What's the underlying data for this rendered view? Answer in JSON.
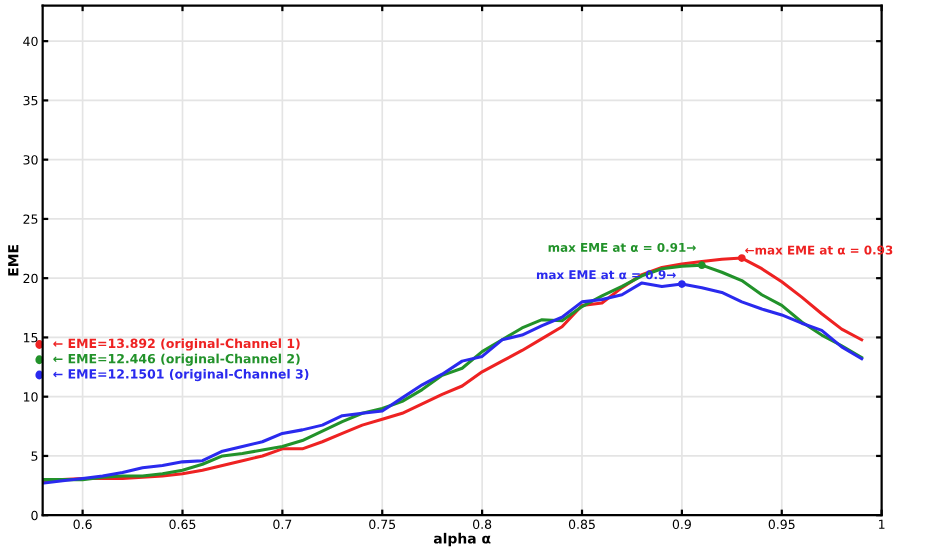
{
  "chart_data": {
    "type": "line",
    "xlabel": "alpha α",
    "ylabel": "EME",
    "x": [
      0.58,
      0.59,
      0.6,
      0.61,
      0.62,
      0.63,
      0.64,
      0.65,
      0.66,
      0.67,
      0.68,
      0.69,
      0.7,
      0.71,
      0.72,
      0.73,
      0.74,
      0.75,
      0.76,
      0.77,
      0.78,
      0.79,
      0.8,
      0.81,
      0.82,
      0.83,
      0.84,
      0.85,
      0.86,
      0.87,
      0.88,
      0.89,
      0.9,
      0.91,
      0.92,
      0.93,
      0.94,
      0.95,
      0.96,
      0.97,
      0.98,
      0.99
    ],
    "series": [
      {
        "color": "#ee2222",
        "values": [
          2.9,
          3.0,
          3.1,
          3.1,
          3.1,
          3.2,
          3.3,
          3.5,
          3.8,
          4.2,
          4.6,
          5.0,
          5.6,
          5.6,
          6.2,
          6.9,
          7.6,
          8.1,
          8.6,
          9.4,
          10.2,
          10.9,
          12.1,
          13.0,
          13.9,
          14.9,
          15.9,
          17.7,
          17.9,
          19.2,
          20.3,
          20.9,
          21.2,
          21.4,
          21.6,
          21.7,
          20.8,
          19.7,
          18.4,
          17.0,
          15.7,
          14.8
        ]
      },
      {
        "color": "#22922a",
        "values": [
          3.0,
          3.0,
          3.0,
          3.2,
          3.3,
          3.3,
          3.5,
          3.8,
          4.3,
          5.0,
          5.2,
          5.5,
          5.8,
          6.3,
          7.1,
          7.9,
          8.6,
          9.0,
          9.6,
          10.6,
          11.8,
          12.4,
          13.8,
          14.8,
          15.8,
          16.5,
          16.4,
          17.6,
          18.5,
          19.3,
          20.2,
          20.8,
          21.0,
          21.1,
          20.5,
          19.8,
          18.6,
          17.7,
          16.3,
          15.2,
          14.3,
          13.3
        ]
      },
      {
        "color": "#2a2aee",
        "values": [
          2.7,
          2.9,
          3.1,
          3.3,
          3.6,
          4.0,
          4.2,
          4.5,
          4.6,
          5.4,
          5.8,
          6.2,
          6.9,
          7.2,
          7.6,
          8.4,
          8.6,
          8.8,
          9.9,
          11.0,
          11.9,
          13.0,
          13.4,
          14.8,
          15.2,
          16.0,
          16.7,
          18.0,
          18.2,
          18.6,
          19.6,
          19.3,
          19.5,
          19.2,
          18.8,
          18.0,
          17.4,
          16.9,
          16.2,
          15.6,
          14.2,
          13.2
        ]
      }
    ],
    "annotations": [
      "← EME=13.892 (original-Channel 1)",
      "← EME=12.446 (original-Channel 2)",
      "← EME=12.1501 (original-Channel 3)",
      {
        "text": "←max EME at α = 0.93",
        "x": 0.93,
        "y": 21.7
      },
      {
        "text": "max EME at α = 0.91→",
        "x": 0.91,
        "y": 21.1
      },
      {
        "text": "max EME at α = 0.9→",
        "x": 0.9,
        "y": 19.5
      }
    ],
    "xlim": [
      0.58,
      1
    ],
    "ylim": [
      0,
      43
    ],
    "xticks": [
      0.6,
      0.65,
      0.7,
      0.75,
      0.8,
      0.85,
      0.9,
      0.95,
      1
    ],
    "yticks": [
      0,
      5,
      10,
      15,
      20,
      25,
      30,
      35,
      40
    ],
    "grid": true,
    "legend": false,
    "marker": "none",
    "line_style": "solid"
  }
}
